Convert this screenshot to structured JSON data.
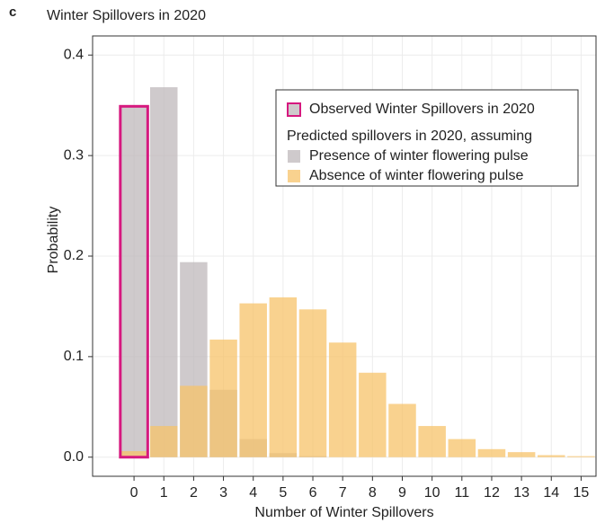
{
  "chart_data": {
    "type": "bar",
    "panel_label": "c",
    "title": "Winter Spillovers in 2020",
    "x_label": "Number of Winter Spillovers",
    "y_label": "Probability",
    "x": [
      0,
      1,
      2,
      3,
      4,
      5,
      6,
      7,
      8,
      9,
      10,
      11,
      12,
      13,
      14,
      15
    ],
    "series": [
      {
        "name": "Presence of winter flowering pulse",
        "color": "#bfb8bb",
        "values": [
          0.348,
          0.368,
          0.194,
          0.067,
          0.018,
          0.004,
          0.001,
          0,
          0,
          0,
          0,
          0,
          0,
          0,
          0,
          0
        ]
      },
      {
        "name": "Absence of winter flowering pulse",
        "color": "#f7c36a",
        "values": [
          0.006,
          0.031,
          0.071,
          0.117,
          0.153,
          0.159,
          0.147,
          0.114,
          0.084,
          0.053,
          0.031,
          0.018,
          0.008,
          0.005,
          0.002,
          0.001
        ]
      }
    ],
    "observed": {
      "name": "Observed Winter Spillovers in 2020",
      "color": "#d6197f",
      "x": 0,
      "value": 0.349
    },
    "legend_heading": "Predicted spillovers in 2020, assuming",
    "xlim": [
      -1.39,
      15.5
    ],
    "xticks": [
      0,
      1,
      2,
      3,
      4,
      5,
      6,
      7,
      8,
      9,
      10,
      11,
      12,
      13,
      14,
      15
    ],
    "ylim": [
      -0.019,
      0.419
    ],
    "yticks": [
      {
        "value": 0,
        "label": "0.0"
      },
      0.1,
      0.2,
      0.3,
      0.4
    ],
    "grid": true,
    "legend_position": "upper right"
  }
}
